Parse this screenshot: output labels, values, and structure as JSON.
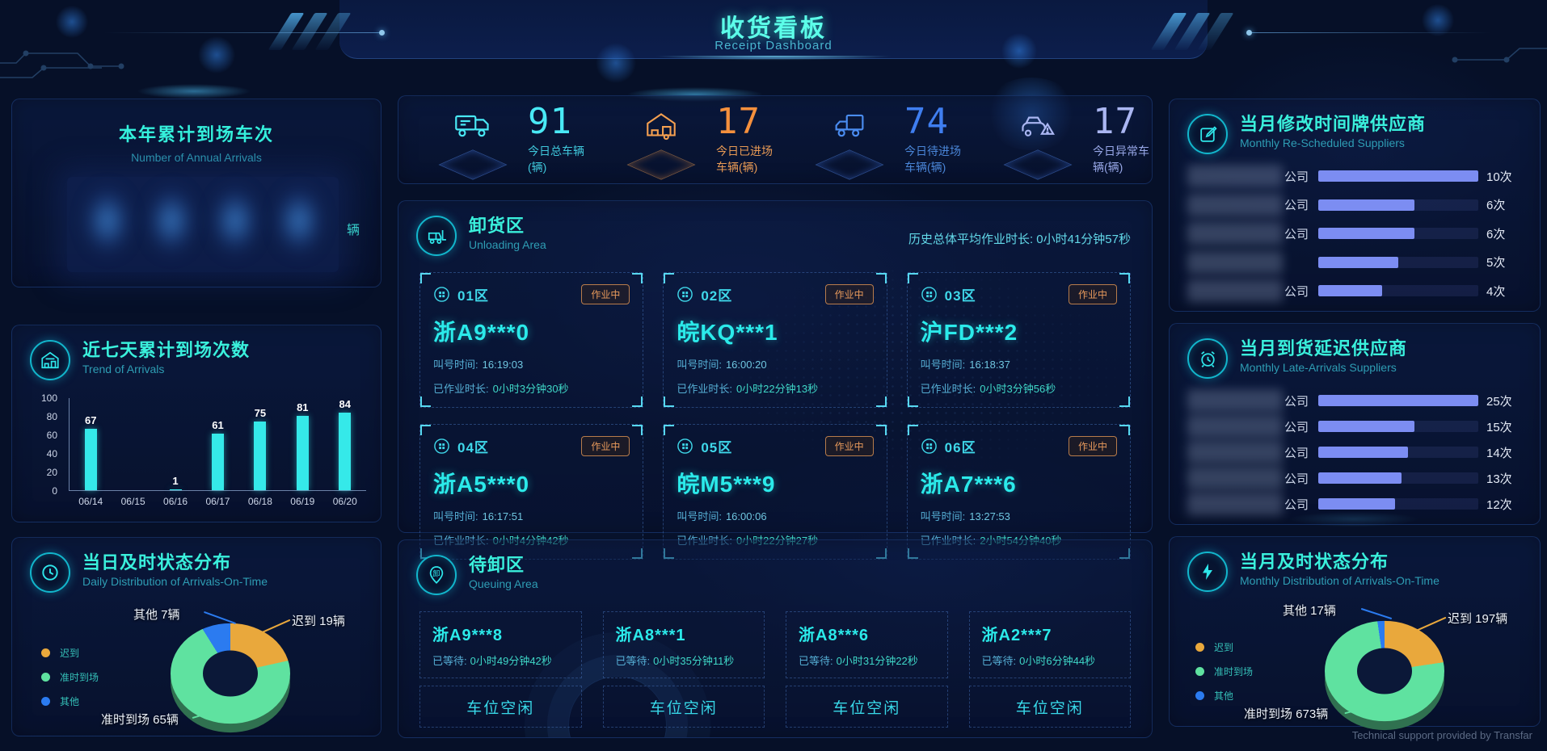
{
  "header": {
    "title": "收货看板",
    "subtitle": "Receipt Dashboard"
  },
  "footer": {
    "text": "Technical support provided by Transfar"
  },
  "stats": [
    {
      "value": "91",
      "label": "今日总车辆(辆)",
      "color": "#49e9f5",
      "icon": "truck-icon"
    },
    {
      "value": "17",
      "label": "今日已进场车辆(辆)",
      "color": "#f5903d",
      "icon": "warehouse-icon"
    },
    {
      "value": "74",
      "label": "今日待进场车辆(辆)",
      "color": "#3f7ef0",
      "icon": "truck-entering-icon"
    },
    {
      "value": "17",
      "label": "今日异常车辆(辆)",
      "color": "#aab6f2",
      "icon": "car-warning-icon"
    }
  ],
  "annual": {
    "title": "本年累计到场车次",
    "subtitle": "Number of Annual Arrivals",
    "unit": "辆"
  },
  "trend": {
    "title": "近七天累计到场次数",
    "subtitle": "Trend of Arrivals"
  },
  "daily_pie": {
    "title": "当日及时状态分布",
    "subtitle": "Daily Distribution of Arrivals-On-Time",
    "callout_other": "其他 7辆",
    "callout_late": "迟到 19辆",
    "callout_ontime": "准时到场 65辆"
  },
  "monthly_pie": {
    "title": "当月及时状态分布",
    "subtitle": "Monthly Distribution of Arrivals-On-Time",
    "callout_other": "其他 17辆",
    "callout_late": "迟到 197辆",
    "callout_ontime": "准时到场 673辆"
  },
  "pie_legend": [
    {
      "label": "迟到",
      "color": "#e9a83c"
    },
    {
      "label": "准时到场",
      "color": "#5fe2a0"
    },
    {
      "label": "其他",
      "color": "#2b7bf0"
    }
  ],
  "unloading": {
    "title": "卸货区",
    "subtitle": "Unloading Area",
    "hist_label": "历史总体平均作业时长:",
    "hist_value": "0小时41分钟57秒",
    "badge": "作业中",
    "call_label": "叫号时间:",
    "work_label": "已作业时长:",
    "slots": [
      {
        "zone": "01区",
        "plate": "浙A9***0",
        "call_time": "16:19:03",
        "work_time": "0小时3分钟30秒"
      },
      {
        "zone": "02区",
        "plate": "皖KQ***1",
        "call_time": "16:00:20",
        "work_time": "0小时22分钟13秒"
      },
      {
        "zone": "03区",
        "plate": "沪FD***2",
        "call_time": "16:18:37",
        "work_time": "0小时3分钟56秒"
      },
      {
        "zone": "04区",
        "plate": "浙A5***0",
        "call_time": "16:17:51",
        "work_time": "0小时4分钟42秒"
      },
      {
        "zone": "05区",
        "plate": "皖M5***9",
        "call_time": "16:00:06",
        "work_time": "0小时22分钟27秒"
      },
      {
        "zone": "06区",
        "plate": "浙A7***6",
        "call_time": "13:27:53",
        "work_time": "2小时54分钟40秒"
      }
    ]
  },
  "queuing": {
    "title": "待卸区",
    "subtitle": "Queuing Area",
    "wait_label": "已等待:",
    "empty_label": "车位空闲",
    "vehicles": [
      {
        "plate": "浙A9***8",
        "wait": "0小时49分钟42秒"
      },
      {
        "plate": "浙A8***1",
        "wait": "0小时35分钟11秒"
      },
      {
        "plate": "浙A8***6",
        "wait": "0小时31分钟22秒"
      },
      {
        "plate": "浙A2***7",
        "wait": "0小时6分钟44秒"
      }
    ]
  },
  "rescheduled": {
    "title": "当月修改时间牌供应商",
    "subtitle": "Monthly Re-Scheduled Suppliers",
    "bar_color": "#7c8df2",
    "rows": [
      {
        "suffix": "公司",
        "count": "10次",
        "pct": 100
      },
      {
        "suffix": "公司",
        "count": "6次",
        "pct": 60
      },
      {
        "suffix": "公司",
        "count": "6次",
        "pct": 60
      },
      {
        "suffix": "",
        "count": "5次",
        "pct": 50
      },
      {
        "suffix": "公司",
        "count": "4次",
        "pct": 40
      }
    ]
  },
  "late": {
    "title": "当月到货延迟供应商",
    "subtitle": "Monthly Late-Arrivals Suppliers",
    "bar_color": "#7c8df2",
    "rows": [
      {
        "suffix": "公司",
        "count": "25次",
        "pct": 100
      },
      {
        "suffix": "公司",
        "count": "15次",
        "pct": 60
      },
      {
        "suffix": "公司",
        "count": "14次",
        "pct": 56
      },
      {
        "suffix": "公司",
        "count": "13次",
        "pct": 52
      },
      {
        "suffix": "公司",
        "count": "12次",
        "pct": 48
      }
    ]
  },
  "chart_data": [
    {
      "id": "trend",
      "type": "bar",
      "title": "近七天累计到场次数",
      "categories": [
        "06/14",
        "06/15",
        "06/16",
        "06/17",
        "06/18",
        "06/19",
        "06/20"
      ],
      "values": [
        67,
        null,
        1,
        61,
        75,
        81,
        84
      ],
      "ylim": [
        0,
        100
      ],
      "yticks": [
        0,
        20,
        40,
        60,
        80,
        100
      ],
      "bar_color": "#35e9e9",
      "grid": false
    },
    {
      "id": "daily",
      "type": "pie",
      "title": "当日及时状态分布",
      "labels": [
        "迟到",
        "准时到场",
        "其他"
      ],
      "values": [
        19,
        65,
        7
      ],
      "unit": "辆",
      "colors": [
        "#e9a83c",
        "#5fe2a0",
        "#2b7bf0"
      ],
      "legend_position": "left"
    },
    {
      "id": "monthly",
      "type": "pie",
      "title": "当月及时状态分布",
      "labels": [
        "迟到",
        "准时到场",
        "其他"
      ],
      "values": [
        197,
        673,
        17
      ],
      "unit": "辆",
      "colors": [
        "#e9a83c",
        "#5fe2a0",
        "#2b7bf0"
      ],
      "legend_position": "left"
    }
  ]
}
